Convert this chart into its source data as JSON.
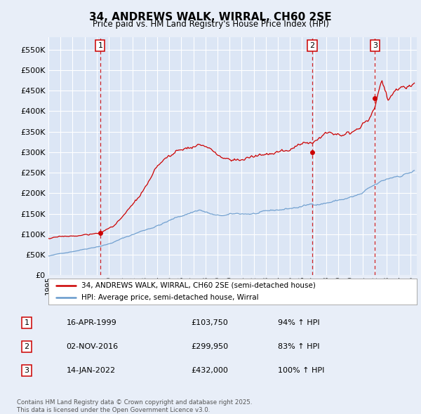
{
  "title": "34, ANDREWS WALK, WIRRAL, CH60 2SE",
  "subtitle": "Price paid vs. HM Land Registry's House Price Index (HPI)",
  "legend_line1": "34, ANDREWS WALK, WIRRAL, CH60 2SE (semi-detached house)",
  "legend_line2": "HPI: Average price, semi-detached house, Wirral",
  "sale_color": "#cc0000",
  "hpi_color": "#6699cc",
  "background_color": "#e8eef8",
  "plot_bg_color": "#dce6f5",
  "grid_color": "#ffffff",
  "vline_color": "#cc0000",
  "ylim": [
    0,
    580000
  ],
  "yticks": [
    0,
    50000,
    100000,
    150000,
    200000,
    250000,
    300000,
    350000,
    400000,
    450000,
    500000,
    550000
  ],
  "xlim_start": 1995.0,
  "xlim_end": 2025.5,
  "sale_events": [
    {
      "year": 1999.29,
      "price": 103750,
      "label": "1"
    },
    {
      "year": 2016.84,
      "price": 299950,
      "label": "2"
    },
    {
      "year": 2022.04,
      "price": 432000,
      "label": "3"
    }
  ],
  "table_rows": [
    {
      "num": "1",
      "date": "16-APR-1999",
      "price": "£103,750",
      "hpi": "94% ↑ HPI"
    },
    {
      "num": "2",
      "date": "02-NOV-2016",
      "price": "£299,950",
      "hpi": "83% ↑ HPI"
    },
    {
      "num": "3",
      "date": "14-JAN-2022",
      "price": "£432,000",
      "hpi": "100% ↑ HPI"
    }
  ],
  "footnote": "Contains HM Land Registry data © Crown copyright and database right 2025.\nThis data is licensed under the Open Government Licence v3.0."
}
